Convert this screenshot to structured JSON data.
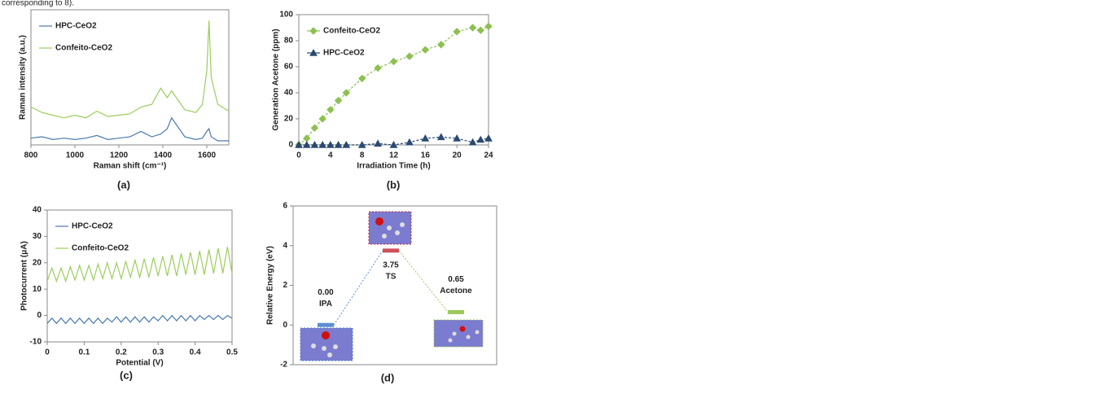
{
  "text_fragment": "corresponding to 8).",
  "chart_data": [
    {
      "type": "line",
      "panel_label": "(a)",
      "xlabel": "Raman shift (cm⁻¹)",
      "ylabel": "Raman intensity (a.u.)",
      "x": [
        800,
        850,
        900,
        950,
        1000,
        1050,
        1100,
        1150,
        1200,
        1250,
        1300,
        1350,
        1390,
        1420,
        1440,
        1500,
        1550,
        1580,
        1600,
        1610,
        1620,
        1650,
        1700
      ],
      "xlim": [
        800,
        1700
      ],
      "xticks": [
        800,
        1000,
        1200,
        1400,
        1600
      ],
      "ylim": [
        0,
        100
      ],
      "legend": "upper left",
      "series": [
        {
          "name": "HPC-CeO2",
          "color": "#4a7ab0",
          "values": [
            5,
            6,
            4,
            5,
            4,
            5,
            7,
            4,
            5,
            6,
            10,
            6,
            8,
            12,
            20,
            6,
            4,
            5,
            10,
            12,
            6,
            3,
            3
          ]
        },
        {
          "name": "Confeito-CeO2",
          "color": "#9bce5a",
          "values": [
            28,
            24,
            22,
            20,
            22,
            20,
            25,
            21,
            22,
            23,
            28,
            30,
            42,
            35,
            40,
            26,
            24,
            30,
            55,
            92,
            50,
            30,
            25
          ]
        }
      ]
    },
    {
      "type": "line",
      "panel_label": "(b)",
      "xlabel": "Irradiation Time (h)",
      "ylabel": "Generation Acetone (ppm)",
      "x": [
        0,
        1,
        2,
        3,
        4,
        5,
        6,
        8,
        10,
        12,
        14,
        16,
        18,
        20,
        22,
        23,
        24
      ],
      "xlim": [
        0,
        24
      ],
      "xticks": [
        0,
        4,
        8,
        12,
        16,
        20,
        24
      ],
      "ylim": [
        0,
        100
      ],
      "yticks": [
        0,
        20,
        40,
        60,
        80,
        100
      ],
      "legend": "upper left",
      "series": [
        {
          "name": "Confeito-CeO2",
          "color": "#8cc152",
          "marker": "diamond",
          "values": [
            0,
            5,
            13,
            20,
            27,
            34,
            40,
            51,
            59,
            64,
            68,
            73,
            77,
            87,
            90,
            88,
            91
          ]
        },
        {
          "name": "HPC-CeO2",
          "color": "#2a4a72",
          "marker": "triangle",
          "values": [
            0,
            0,
            0,
            0,
            0,
            0,
            0,
            0,
            1,
            0,
            2,
            5,
            6,
            5,
            2,
            4,
            5
          ]
        }
      ]
    },
    {
      "type": "line",
      "panel_label": "(c)",
      "xlabel": "Potential (V)",
      "ylabel": "Photocurrent (μA)",
      "x": [
        0,
        0.0125,
        0.025,
        0.0375,
        0.05,
        0.0625,
        0.075,
        0.0875,
        0.1,
        0.1125,
        0.125,
        0.1375,
        0.15,
        0.1625,
        0.175,
        0.1875,
        0.2,
        0.2125,
        0.225,
        0.2375,
        0.25,
        0.2625,
        0.275,
        0.2875,
        0.3,
        0.3125,
        0.325,
        0.3375,
        0.35,
        0.3625,
        0.375,
        0.3875,
        0.4,
        0.4125,
        0.425,
        0.4375,
        0.45,
        0.4625,
        0.475,
        0.4875,
        0.5
      ],
      "xlim": [
        0,
        0.5
      ],
      "xticks": [
        0,
        0.1,
        0.2,
        0.3,
        0.4,
        0.5
      ],
      "ylim": [
        -10,
        40
      ],
      "yticks": [
        -10,
        0,
        10,
        20,
        30,
        40
      ],
      "legend": "upper left",
      "series": [
        {
          "name": "HPC-CeO2",
          "color": "#4a7ab0",
          "values": [
            -3,
            -1,
            -3,
            -1,
            -3,
            -1,
            -3,
            -1,
            -3,
            -1,
            -3,
            -1,
            -3,
            -1,
            -2.5,
            -0.5,
            -2.5,
            -0.5,
            -2.5,
            -0.5,
            -2.5,
            -0.5,
            -2.5,
            -0.5,
            -2,
            0,
            -2,
            0,
            -2,
            0,
            -2,
            0,
            -2,
            0,
            -1.5,
            0,
            -1.5,
            0,
            -1.5,
            0,
            -1
          ]
        },
        {
          "name": "Confeito-CeO2",
          "color": "#9bce5a",
          "values": [
            13,
            18,
            13,
            18,
            13,
            18.5,
            13.5,
            19,
            13.5,
            19,
            13.5,
            19.5,
            14,
            20,
            14,
            20,
            14,
            20.5,
            14.5,
            21,
            14.5,
            21.5,
            14.5,
            22,
            15,
            22.5,
            15,
            23,
            15,
            23.5,
            15.5,
            24,
            15.5,
            24.5,
            15.5,
            25,
            16,
            25.5,
            16,
            26,
            16
          ]
        }
      ]
    },
    {
      "type": "energy",
      "panel_label": "(d)",
      "ylabel": "Relative Energy (eV)",
      "categories": [
        "IPA",
        "TS",
        "Acetone"
      ],
      "values": [
        0,
        3.75,
        0.65
      ],
      "value_labels": [
        "0.00",
        "3.75",
        "0.65"
      ],
      "colors": [
        "#5b8fd4",
        "#d0505a",
        "#9bc85a"
      ],
      "ylim": [
        -2,
        6
      ],
      "yticks": [
        -2,
        0,
        2,
        4,
        6
      ]
    }
  ]
}
